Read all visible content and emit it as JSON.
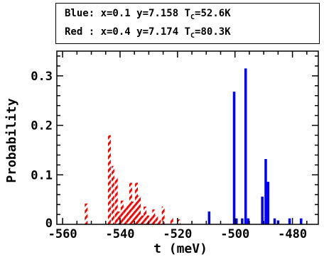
{
  "legend": {
    "line1": {
      "head": "Blue: x=0.1 y=7.158 T",
      "sub": "C",
      "tail": "=52.6K"
    },
    "line2": {
      "head": "Red : x=0.4 y=7.174 T",
      "sub": "C",
      "tail": "=80.3K"
    }
  },
  "colors": {
    "blue": "#0000ff",
    "red": "#ff0000",
    "axis": "#000000"
  },
  "chart_data": {
    "type": "bar",
    "xlabel": "t (meV)",
    "ylabel": "Probability",
    "xlim": [
      -562,
      -471
    ],
    "ylim": [
      0,
      0.35
    ],
    "xticks": [
      -560,
      -540,
      -520,
      -500,
      -480
    ],
    "yticks": [
      0.1,
      0.2,
      0.3
    ],
    "ytick_zero": "0",
    "grid": false,
    "series": [
      {
        "color": "blue",
        "style": "solid",
        "bars": [
          {
            "x": -509.0,
            "y": 0.026
          },
          {
            "x": -500.3,
            "y": 0.268
          },
          {
            "x": -499.5,
            "y": 0.012
          },
          {
            "x": -497.5,
            "y": 0.012
          },
          {
            "x": -496.3,
            "y": 0.315
          },
          {
            "x": -495.4,
            "y": 0.012
          },
          {
            "x": -490.5,
            "y": 0.056
          },
          {
            "x": -489.3,
            "y": 0.132
          },
          {
            "x": -488.5,
            "y": 0.086
          },
          {
            "x": -486.2,
            "y": 0.012
          },
          {
            "x": -485.0,
            "y": 0.008
          },
          {
            "x": -481.0,
            "y": 0.012
          },
          {
            "x": -477.0,
            "y": 0.012
          }
        ]
      },
      {
        "color": "red",
        "style": "hatched",
        "bars": [
          {
            "x": -551.8,
            "y": 0.042
          },
          {
            "x": -543.7,
            "y": 0.18
          },
          {
            "x": -542.5,
            "y": 0.118
          },
          {
            "x": -541.3,
            "y": 0.094
          },
          {
            "x": -540.3,
            "y": 0.026
          },
          {
            "x": -539.3,
            "y": 0.048
          },
          {
            "x": -538.3,
            "y": 0.036
          },
          {
            "x": -537.3,
            "y": 0.042
          },
          {
            "x": -536.3,
            "y": 0.084
          },
          {
            "x": -535.3,
            "y": 0.046
          },
          {
            "x": -534.3,
            "y": 0.084
          },
          {
            "x": -533.3,
            "y": 0.058
          },
          {
            "x": -532.3,
            "y": 0.018
          },
          {
            "x": -531.3,
            "y": 0.036
          },
          {
            "x": -530.3,
            "y": 0.018
          },
          {
            "x": -529.3,
            "y": 0.016
          },
          {
            "x": -528.3,
            "y": 0.03
          },
          {
            "x": -527.3,
            "y": 0.018
          },
          {
            "x": -526.3,
            "y": 0.01
          },
          {
            "x": -525.0,
            "y": 0.036
          },
          {
            "x": -522.0,
            "y": 0.014
          },
          {
            "x": -519.5,
            "y": 0.01
          }
        ]
      }
    ]
  }
}
